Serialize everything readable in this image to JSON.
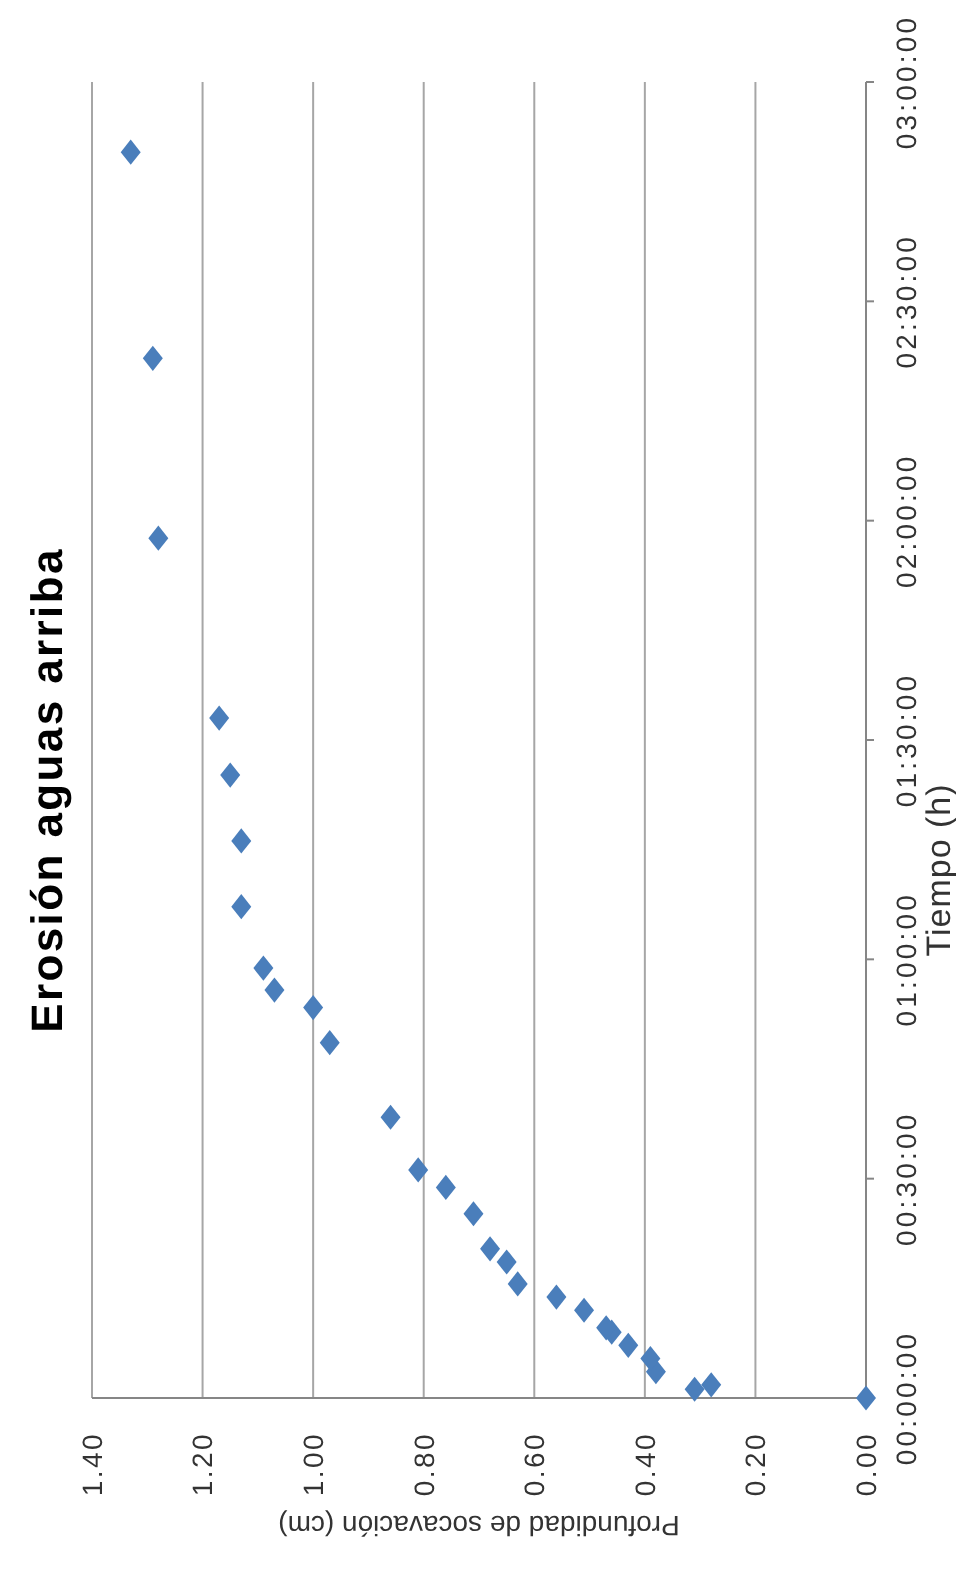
{
  "chart_data": {
    "type": "scatter",
    "title": "Erosión aguas arriba",
    "xlabel": "Profundidad de socavación (cm)",
    "ylabel": "Tiempo (h)",
    "x": [
      0,
      0.31,
      0.28,
      0.38,
      0.39,
      0.43,
      0.46,
      0.47,
      0.51,
      0.56,
      0.63,
      0.65,
      0.68,
      0.71,
      0.76,
      0.81,
      0.86,
      0.97,
      1.0,
      1.07,
      1.09,
      1.13,
      1.13,
      1.15,
      1.17,
      1.28,
      1.29,
      1.33
    ],
    "values": [
      0,
      0.02,
      0.03,
      0.06,
      0.09,
      0.12,
      0.15,
      0.16,
      0.2,
      0.23,
      0.26,
      0.31,
      0.34,
      0.42,
      0.48,
      0.52,
      0.64,
      0.81,
      0.89,
      0.93,
      0.98,
      1.12,
      1.27,
      1.42,
      1.55,
      1.96,
      2.37,
      2.84
    ],
    "color": "#4a7ebb",
    "marker": "diamond",
    "grid": "x",
    "xlim": [
      1.4,
      0
    ],
    "xticks": [
      {
        "value": 1.4,
        "label": "1.40"
      },
      {
        "value": 1.2,
        "label": "1.20"
      },
      {
        "value": 1.0,
        "label": "1.00"
      },
      {
        "value": 0.8,
        "label": "0.80"
      },
      {
        "value": 0.6,
        "label": "0.60"
      },
      {
        "value": 0.4,
        "label": "0.40"
      },
      {
        "value": 0.2,
        "label": "0.20"
      },
      {
        "value": 0,
        "label": "0.00"
      }
    ],
    "ylim": [
      0,
      3
    ],
    "yticks": [
      {
        "value": 0,
        "label": "00:00:00"
      },
      {
        "value": 0.5,
        "label": "00:30:00"
      },
      {
        "value": 1,
        "label": "01:00:00"
      },
      {
        "value": 1.5,
        "label": "01:30:00"
      },
      {
        "value": 2,
        "label": "02:00:00"
      },
      {
        "value": 2.5,
        "label": "02:30:00"
      },
      {
        "value": 3,
        "label": "03:00:00"
      }
    ]
  }
}
